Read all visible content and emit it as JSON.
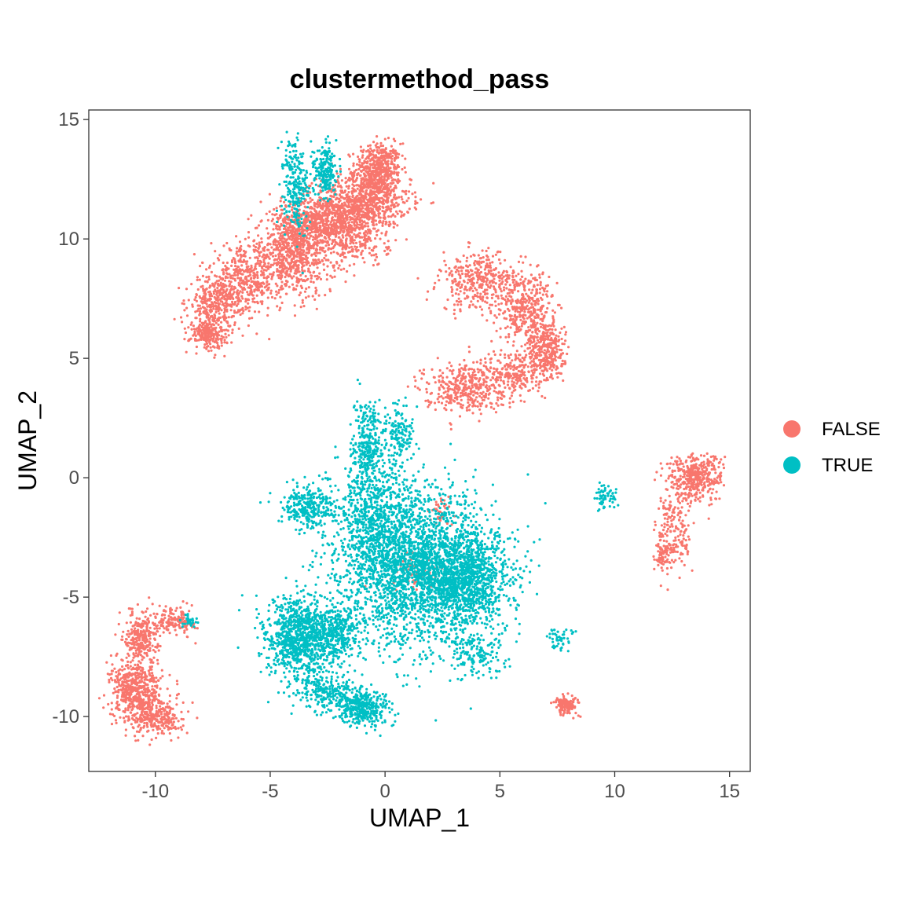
{
  "chart_data": {
    "type": "scatter",
    "title": "clustermethod_pass",
    "xlabel": "UMAP_1",
    "ylabel": "UMAP_2",
    "xlim": [
      -12.9,
      15.9
    ],
    "ylim": [
      -12.3,
      15.4
    ],
    "xticks": [
      -10,
      -5,
      0,
      5,
      10,
      15
    ],
    "xtick_labels": [
      "-10",
      "-5",
      "0",
      "5",
      "10",
      "15"
    ],
    "yticks": [
      -10,
      -5,
      0,
      5,
      10,
      15
    ],
    "ytick_labels": [
      "-10",
      "-5",
      "0",
      "5",
      "10",
      "15"
    ],
    "grid": false,
    "legend_position": "right",
    "series": [
      {
        "name": "FALSE",
        "color": "#F8766D",
        "clusters": [
          {
            "cx": -0.3,
            "cy": 12.9,
            "sx": 0.5,
            "sy": 0.55,
            "n": 500
          },
          {
            "cx": -0.9,
            "cy": 11.6,
            "sx": 1.0,
            "sy": 0.55,
            "n": 700
          },
          {
            "cx": -2.5,
            "cy": 10.7,
            "sx": 1.0,
            "sy": 0.55,
            "n": 700
          },
          {
            "cx": -4.0,
            "cy": 9.4,
            "sx": 0.9,
            "sy": 0.9,
            "n": 800
          },
          {
            "cx": -6.2,
            "cy": 8.2,
            "sx": 0.7,
            "sy": 0.7,
            "n": 400
          },
          {
            "cx": -7.5,
            "cy": 7.2,
            "sx": 0.5,
            "sy": 0.6,
            "n": 300
          },
          {
            "cx": -7.7,
            "cy": 6.0,
            "sx": 0.4,
            "sy": 0.3,
            "n": 200
          },
          {
            "cx": -1.2,
            "cy": 9.8,
            "sx": 0.7,
            "sy": 0.5,
            "n": 150
          },
          {
            "cx": 4.2,
            "cy": 8.2,
            "sx": 0.9,
            "sy": 0.6,
            "n": 400
          },
          {
            "cx": 6.2,
            "cy": 7.1,
            "sx": 0.6,
            "sy": 0.7,
            "n": 350
          },
          {
            "cx": 7.0,
            "cy": 5.3,
            "sx": 0.4,
            "sy": 0.7,
            "n": 350
          },
          {
            "cx": 5.6,
            "cy": 4.4,
            "sx": 0.6,
            "sy": 0.5,
            "n": 200
          },
          {
            "cx": 3.5,
            "cy": 3.8,
            "sx": 0.9,
            "sy": 0.5,
            "n": 400
          },
          {
            "cx": 13.5,
            "cy": 0.0,
            "sx": 0.6,
            "sy": 0.5,
            "n": 400
          },
          {
            "cx": 12.6,
            "cy": -2.2,
            "sx": 0.4,
            "sy": 0.9,
            "n": 180
          },
          {
            "cx": 12.1,
            "cy": -3.3,
            "sx": 0.2,
            "sy": 0.3,
            "n": 60
          },
          {
            "cx": -10.8,
            "cy": -9.0,
            "sx": 0.55,
            "sy": 0.7,
            "n": 600
          },
          {
            "cx": -9.8,
            "cy": -10.1,
            "sx": 0.5,
            "sy": 0.35,
            "n": 200
          },
          {
            "cx": -10.6,
            "cy": -6.6,
            "sx": 0.35,
            "sy": 0.5,
            "n": 250
          },
          {
            "cx": -9.2,
            "cy": -6.0,
            "sx": 0.5,
            "sy": 0.3,
            "n": 150
          },
          {
            "cx": 7.9,
            "cy": -9.5,
            "sx": 0.25,
            "sy": 0.2,
            "n": 150
          },
          {
            "cx": 2.5,
            "cy": -1.5,
            "sx": 0.3,
            "sy": 0.3,
            "n": 40
          },
          {
            "cx": 1.3,
            "cy": -3.9,
            "sx": 0.7,
            "sy": 0.4,
            "n": 60
          }
        ]
      },
      {
        "name": "TRUE",
        "color": "#00BFC4",
        "clusters": [
          {
            "cx": 1.5,
            "cy": -3.8,
            "sx": 1.7,
            "sy": 1.6,
            "n": 2600
          },
          {
            "cx": 3.6,
            "cy": -4.3,
            "sx": 0.9,
            "sy": 0.9,
            "n": 900
          },
          {
            "cx": -0.5,
            "cy": -1.5,
            "sx": 0.8,
            "sy": 1.4,
            "n": 700
          },
          {
            "cx": -3.8,
            "cy": -6.8,
            "sx": 0.7,
            "sy": 0.9,
            "n": 900
          },
          {
            "cx": -2.2,
            "cy": -6.5,
            "sx": 0.6,
            "sy": 0.6,
            "n": 400
          },
          {
            "cx": -1.0,
            "cy": -9.6,
            "sx": 0.6,
            "sy": 0.4,
            "n": 400
          },
          {
            "cx": -2.5,
            "cy": -9.0,
            "sx": 0.6,
            "sy": 0.4,
            "n": 200
          },
          {
            "cx": -3.3,
            "cy": -1.2,
            "sx": 0.6,
            "sy": 0.4,
            "n": 300
          },
          {
            "cx": -0.8,
            "cy": 1.5,
            "sx": 0.3,
            "sy": 0.8,
            "n": 250
          },
          {
            "cx": 0.6,
            "cy": 1.8,
            "sx": 0.3,
            "sy": 0.7,
            "n": 150
          },
          {
            "cx": -3.9,
            "cy": 12.2,
            "sx": 0.3,
            "sy": 1.0,
            "n": 250
          },
          {
            "cx": -2.6,
            "cy": 12.9,
            "sx": 0.25,
            "sy": 0.5,
            "n": 200
          },
          {
            "cx": 9.6,
            "cy": -0.8,
            "sx": 0.25,
            "sy": 0.3,
            "n": 60
          },
          {
            "cx": 7.6,
            "cy": -6.7,
            "sx": 0.3,
            "sy": 0.25,
            "n": 50
          },
          {
            "cx": 4.0,
            "cy": -7.4,
            "sx": 0.6,
            "sy": 0.5,
            "n": 150
          },
          {
            "cx": -8.5,
            "cy": -6.0,
            "sx": 0.2,
            "sy": 0.15,
            "n": 30
          }
        ]
      }
    ]
  }
}
